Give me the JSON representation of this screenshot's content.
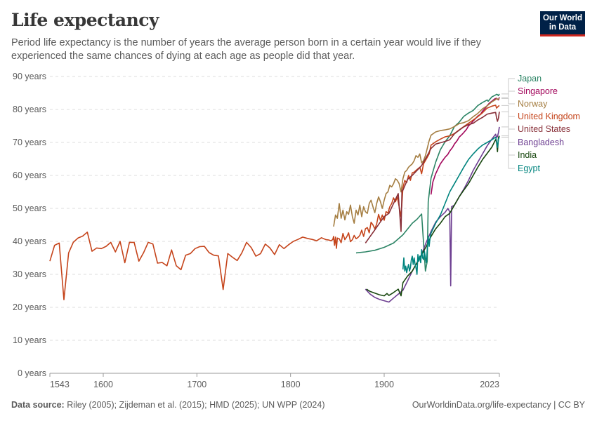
{
  "header": {
    "title": "Life expectancy",
    "subtitle": "Period life expectancy is the number of years the average person born in a certain year would live if they experienced the same chances of dying at each age as people did that year.",
    "logo_line1": "Our World",
    "logo_line2": "in Data"
  },
  "footer": {
    "source_label": "Data source:",
    "source_text": "Riley (2005); Zijdeman et al. (2015); HMD (2025); UN WPP (2024)",
    "url_text": "OurWorldinData.org/life-expectancy | CC BY"
  },
  "chart_data": {
    "type": "line",
    "title": "Life expectancy",
    "xlabel": "",
    "ylabel": "",
    "xlim": [
      1543,
      2023
    ],
    "ylim": [
      0,
      90
    ],
    "grid": true,
    "legend_placement": "right",
    "x_ticks": [
      {
        "value": 1543,
        "label": "1543"
      },
      {
        "value": 1600,
        "label": "1600"
      },
      {
        "value": 1700,
        "label": "1700"
      },
      {
        "value": 1800,
        "label": "1800"
      },
      {
        "value": 1900,
        "label": "1900"
      },
      {
        "value": 2023,
        "label": "2023"
      }
    ],
    "y_ticks": [
      {
        "value": 0,
        "label": "0 years"
      },
      {
        "value": 10,
        "label": "10 years"
      },
      {
        "value": 20,
        "label": "20 years"
      },
      {
        "value": 30,
        "label": "30 years"
      },
      {
        "value": 40,
        "label": "40 years"
      },
      {
        "value": 50,
        "label": "50 years"
      },
      {
        "value": 60,
        "label": "60 years"
      },
      {
        "value": 70,
        "label": "70 years"
      },
      {
        "value": 80,
        "label": "80 years"
      },
      {
        "value": 90,
        "label": "90 years"
      }
    ],
    "series": [
      {
        "name": "Japan",
        "color": "#2c8465",
        "end_value": 84.7,
        "x": [
          1870,
          1880,
          1890,
          1900,
          1910,
          1920,
          1930,
          1935,
          1940,
          1944,
          1946,
          1947,
          1950,
          1955,
          1960,
          1965,
          1970,
          1975,
          1980,
          1985,
          1990,
          1995,
          2000,
          2005,
          2010,
          2011,
          2015,
          2019,
          2020,
          2021,
          2022,
          2023
        ],
        "y": [
          36.5,
          36.8,
          37.3,
          38.2,
          39.5,
          42.0,
          45.5,
          46.7,
          48.3,
          31.0,
          34.0,
          52.0,
          59.2,
          64.0,
          67.8,
          70.2,
          72.0,
          74.8,
          76.1,
          77.9,
          78.9,
          79.7,
          81.2,
          82.1,
          82.9,
          82.5,
          83.8,
          84.4,
          84.6,
          84.5,
          84.2,
          84.7
        ]
      },
      {
        "name": "Singapore",
        "color": "#a2065b",
        "end_value": 83.7,
        "x": [
          1950,
          1952,
          1955,
          1958,
          1960,
          1963,
          1965,
          1968,
          1970,
          1973,
          1975,
          1978,
          1980,
          1983,
          1985,
          1988,
          1990,
          1993,
          1995,
          1998,
          2000,
          2003,
          2005,
          2008,
          2010,
          2013,
          2015,
          2018,
          2020,
          2021,
          2022,
          2023
        ],
        "y": [
          54.2,
          58.0,
          60.5,
          62.3,
          63.5,
          64.7,
          65.5,
          66.4,
          67.4,
          68.5,
          69.5,
          70.6,
          71.6,
          72.4,
          73.0,
          74.0,
          75.0,
          75.8,
          76.5,
          77.4,
          78.0,
          78.6,
          79.5,
          80.4,
          81.2,
          82.1,
          82.5,
          83.2,
          83.4,
          83.1,
          82.9,
          83.7
        ]
      },
      {
        "name": "Norway",
        "color": "#a57e42",
        "end_value": 83.3,
        "x": [
          1846,
          1848,
          1850,
          1852,
          1854,
          1856,
          1858,
          1860,
          1862,
          1864,
          1866,
          1868,
          1870,
          1872,
          1874,
          1876,
          1878,
          1880,
          1882,
          1884,
          1886,
          1888,
          1890,
          1892,
          1894,
          1896,
          1898,
          1900,
          1902,
          1904,
          1906,
          1908,
          1910,
          1912,
          1914,
          1916,
          1918,
          1920,
          1922,
          1924,
          1926,
          1928,
          1930,
          1932,
          1934,
          1936,
          1938,
          1940,
          1942,
          1944,
          1946,
          1948,
          1950,
          1955,
          1960,
          1965,
          1970,
          1975,
          1980,
          1985,
          1990,
          1995,
          2000,
          2005,
          2010,
          2015,
          2019,
          2020,
          2021,
          2022,
          2023
        ],
        "y": [
          44.5,
          48.0,
          47.0,
          51.5,
          47.0,
          49.5,
          46.5,
          49.0,
          48.2,
          51.0,
          47.5,
          45.5,
          49.5,
          48.0,
          51.0,
          47.5,
          50.5,
          49.0,
          48.5,
          51.5,
          52.5,
          50.5,
          48.7,
          51.5,
          53.5,
          52.0,
          50.0,
          52.5,
          54.5,
          55.0,
          57.0,
          56.5,
          57.5,
          59.0,
          58.5,
          57.5,
          55.0,
          59.0,
          61.0,
          61.5,
          62.5,
          63.0,
          63.5,
          64.5,
          66.0,
          65.5,
          66.5,
          63.8,
          64.5,
          66.0,
          68.2,
          70.5,
          72.2,
          73.2,
          73.6,
          73.8,
          74.1,
          74.8,
          75.7,
          76.0,
          76.6,
          77.8,
          78.8,
          80.2,
          81.1,
          82.3,
          83.0,
          83.3,
          83.2,
          83.1,
          83.3
        ]
      },
      {
        "name": "United Kingdom",
        "color": "#c5441b",
        "end_value": 81.2,
        "x": [
          1543,
          1548,
          1553,
          1558,
          1563,
          1568,
          1573,
          1578,
          1583,
          1588,
          1593,
          1598,
          1603,
          1608,
          1613,
          1618,
          1623,
          1628,
          1633,
          1638,
          1643,
          1648,
          1653,
          1658,
          1663,
          1668,
          1673,
          1678,
          1683,
          1688,
          1693,
          1698,
          1703,
          1708,
          1713,
          1718,
          1723,
          1728,
          1733,
          1738,
          1743,
          1748,
          1753,
          1758,
          1763,
          1768,
          1773,
          1778,
          1783,
          1788,
          1793,
          1798,
          1803,
          1808,
          1813,
          1818,
          1823,
          1828,
          1833,
          1838,
          1841,
          1843,
          1845,
          1846,
          1847,
          1848,
          1849,
          1850,
          1852,
          1854,
          1856,
          1858,
          1860,
          1862,
          1864,
          1866,
          1868,
          1870,
          1872,
          1874,
          1876,
          1878,
          1880,
          1882,
          1884,
          1886,
          1888,
          1890,
          1892,
          1894,
          1896,
          1898,
          1900,
          1902,
          1904,
          1906,
          1908,
          1910,
          1912,
          1914,
          1916,
          1918,
          1920,
          1922,
          1924,
          1926,
          1928,
          1930,
          1932,
          1934,
          1936,
          1938,
          1940,
          1942,
          1944,
          1946,
          1948,
          1950,
          1955,
          1960,
          1965,
          1970,
          1975,
          1980,
          1985,
          1990,
          1995,
          2000,
          2005,
          2010,
          2015,
          2019,
          2020,
          2021,
          2022,
          2023
        ],
        "y": [
          34.0,
          38.8,
          39.5,
          22.3,
          36.5,
          39.7,
          41.0,
          41.6,
          42.8,
          37.0,
          38.0,
          37.8,
          38.5,
          39.7,
          36.8,
          40.0,
          33.5,
          39.7,
          39.7,
          34.0,
          36.5,
          39.7,
          39.2,
          33.4,
          33.6,
          32.6,
          37.4,
          32.6,
          31.4,
          35.8,
          36.3,
          37.8,
          38.4,
          38.5,
          36.6,
          35.8,
          35.6,
          25.4,
          36.3,
          35.2,
          34.2,
          36.5,
          39.7,
          38.1,
          35.5,
          36.3,
          39.2,
          38.0,
          36.0,
          39.0,
          37.8,
          39.0,
          40.0,
          40.6,
          41.3,
          40.9,
          40.6,
          40.2,
          41.1,
          40.5,
          40.4,
          40.2,
          40.5,
          41.5,
          38.8,
          41.3,
          37.9,
          41.0,
          40.8,
          39.6,
          42.4,
          40.5,
          41.4,
          42.6,
          39.9,
          40.5,
          41.8,
          40.8,
          41.2,
          41.8,
          43.4,
          41.5,
          43.8,
          44.2,
          42.6,
          45.8,
          45.0,
          43.8,
          45.3,
          48.2,
          46.3,
          48.0,
          46.4,
          49.0,
          48.6,
          50.5,
          51.5,
          53.2,
          52.0,
          53.5,
          50.5,
          47.5,
          56.3,
          58.5,
          57.8,
          60.0,
          58.5,
          60.8,
          61.0,
          61.5,
          62.0,
          62.5,
          60.5,
          63.5,
          64.5,
          65.5,
          66.5,
          69.2,
          70.2,
          71.0,
          71.7,
          72.0,
          72.7,
          73.8,
          74.8,
          75.8,
          76.8,
          77.8,
          79.0,
          80.4,
          81.0,
          81.3,
          80.4,
          80.7,
          81.0,
          81.2
        ]
      },
      {
        "name": "United States",
        "color": "#883039",
        "end_value": 79.3,
        "x": [
          1880,
          1885,
          1890,
          1895,
          1900,
          1905,
          1910,
          1915,
          1918,
          1919,
          1920,
          1925,
          1930,
          1935,
          1940,
          1945,
          1950,
          1955,
          1960,
          1965,
          1970,
          1975,
          1980,
          1985,
          1990,
          1995,
          2000,
          2005,
          2010,
          2015,
          2019,
          2020,
          2021,
          2022,
          2023
        ],
        "y": [
          39.5,
          41.5,
          43.5,
          45.5,
          47.5,
          48.5,
          51.5,
          54.5,
          43.0,
          55.5,
          55.5,
          58.8,
          60.0,
          61.5,
          63.0,
          65.5,
          68.2,
          69.5,
          69.9,
          70.3,
          70.8,
          72.6,
          73.7,
          74.7,
          75.4,
          75.8,
          76.8,
          77.6,
          78.6,
          78.9,
          79.1,
          77.4,
          76.4,
          77.4,
          79.3
        ]
      },
      {
        "name": "Bangladesh",
        "color": "#6d3e91",
        "end_value": 74.7,
        "x": [
          1880,
          1885,
          1890,
          1895,
          1900,
          1905,
          1910,
          1915,
          1920,
          1925,
          1930,
          1935,
          1940,
          1945,
          1950,
          1955,
          1960,
          1965,
          1968,
          1970,
          1971,
          1972,
          1975,
          1980,
          1985,
          1990,
          1995,
          2000,
          2005,
          2010,
          2015,
          2019,
          2020,
          2021,
          2022,
          2023
        ],
        "y": [
          25.5,
          24.0,
          23.0,
          22.4,
          22.0,
          21.6,
          22.8,
          24.0,
          25.2,
          28.0,
          31.0,
          33.5,
          36.0,
          39.8,
          43.0,
          45.8,
          47.5,
          48.8,
          50.0,
          49.0,
          26.5,
          50.5,
          51.0,
          53.5,
          55.8,
          58.5,
          61.5,
          64.0,
          66.5,
          69.0,
          71.0,
          72.5,
          71.5,
          71.8,
          73.0,
          74.7
        ]
      },
      {
        "name": "India",
        "color": "#18470f",
        "end_value": 72.0,
        "x": [
          1881,
          1885,
          1890,
          1895,
          1900,
          1903,
          1905,
          1910,
          1915,
          1918,
          1920,
          1925,
          1930,
          1935,
          1940,
          1945,
          1950,
          1955,
          1960,
          1965,
          1970,
          1975,
          1980,
          1985,
          1990,
          1995,
          2000,
          2005,
          2010,
          2015,
          2019,
          2020,
          2021,
          2022,
          2023
        ],
        "y": [
          25.5,
          24.8,
          24.3,
          23.8,
          23.5,
          24.2,
          23.6,
          24.5,
          25.5,
          23.5,
          27.5,
          29.5,
          31.0,
          33.5,
          36.0,
          38.5,
          41.5,
          43.8,
          45.5,
          47.5,
          48.5,
          51.0,
          53.5,
          55.5,
          57.5,
          60.0,
          62.5,
          64.8,
          66.7,
          68.6,
          70.9,
          70.1,
          67.2,
          71.5,
          72.0
        ]
      },
      {
        "name": "Egypt",
        "color": "#00847e",
        "end_value": 71.6,
        "x": [
          1920,
          1921,
          1922,
          1923,
          1924,
          1925,
          1926,
          1927,
          1928,
          1929,
          1930,
          1931,
          1932,
          1933,
          1934,
          1935,
          1936,
          1937,
          1938,
          1939,
          1940,
          1941,
          1942,
          1943,
          1944,
          1945,
          1946,
          1947,
          1948,
          1949,
          1950,
          1955,
          1960,
          1965,
          1970,
          1975,
          1980,
          1985,
          1990,
          1995,
          2000,
          2005,
          2010,
          2015,
          2019,
          2020,
          2021,
          2022,
          2023
        ],
        "y": [
          31.5,
          35.0,
          31.0,
          32.5,
          30.5,
          31.8,
          33.0,
          31.0,
          32.0,
          34.5,
          35.5,
          33.0,
          35.0,
          33.0,
          32.0,
          30.0,
          36.0,
          34.0,
          35.5,
          33.5,
          37.5,
          35.0,
          34.5,
          37.0,
          35.0,
          33.5,
          37.5,
          41.5,
          38.5,
          41.0,
          42.5,
          45.5,
          48.0,
          51.5,
          55.0,
          57.5,
          60.0,
          62.5,
          64.8,
          66.5,
          68.0,
          69.2,
          70.0,
          70.8,
          71.6,
          70.4,
          68.5,
          71.0,
          71.6
        ]
      }
    ]
  }
}
